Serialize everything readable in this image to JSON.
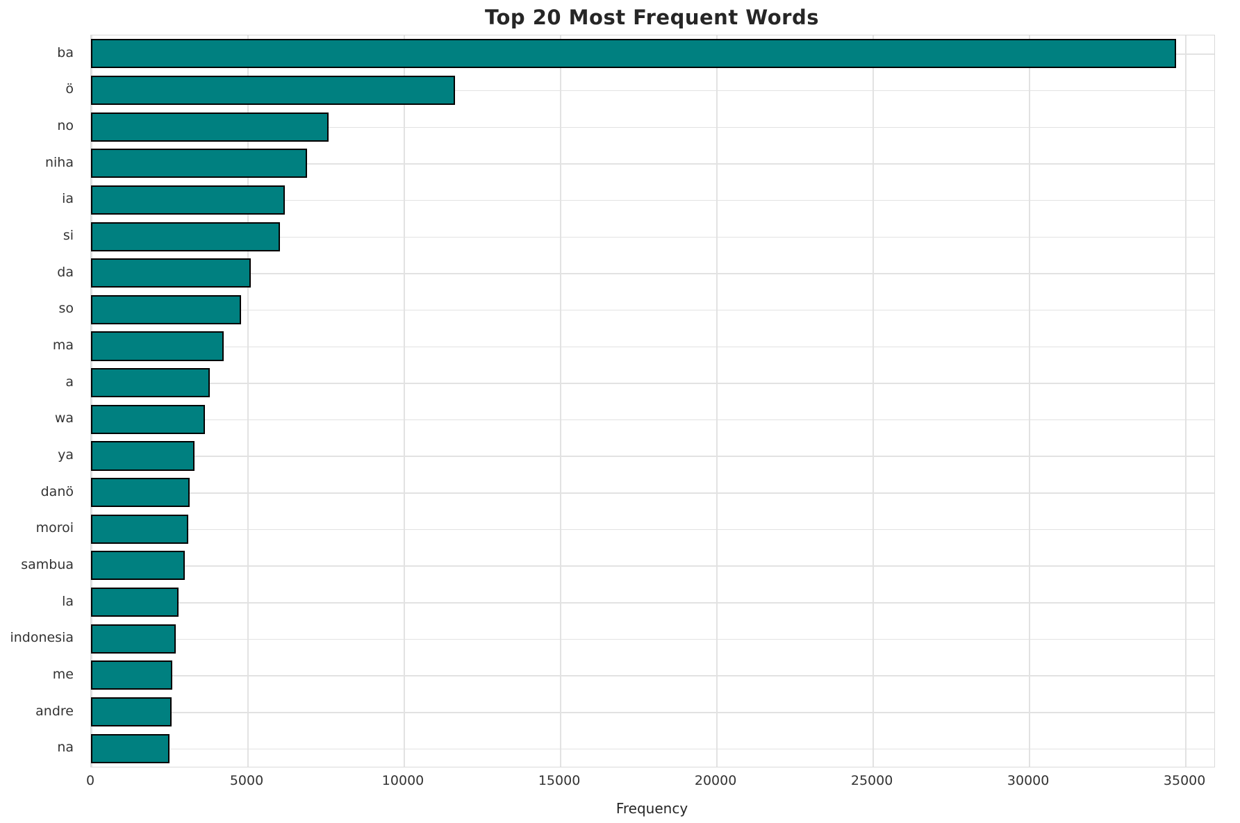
{
  "chart_data": {
    "type": "bar",
    "orientation": "horizontal",
    "title": "Top 20 Most Frequent Words",
    "xlabel": "Frequency",
    "ylabel": "",
    "categories": [
      "ba",
      "ö",
      "no",
      "niha",
      "ia",
      "si",
      "da",
      "so",
      "ma",
      "a",
      "wa",
      "ya",
      "danö",
      "moroi",
      "sambua",
      "la",
      "indonesia",
      "me",
      "andre",
      "na"
    ],
    "values": [
      34700,
      11650,
      7600,
      6900,
      6200,
      6050,
      5100,
      4800,
      4250,
      3800,
      3650,
      3300,
      3150,
      3100,
      3000,
      2800,
      2700,
      2600,
      2570,
      2500
    ],
    "xlim": [
      0,
      35930
    ],
    "xticks": [
      0,
      5000,
      10000,
      15000,
      20000,
      25000,
      30000,
      35000
    ],
    "grid": true,
    "legend": false,
    "bar_color": "#008080",
    "bar_edge_color": "#000000",
    "grid_color": "#e2e2e2",
    "text_color": "#333333"
  }
}
